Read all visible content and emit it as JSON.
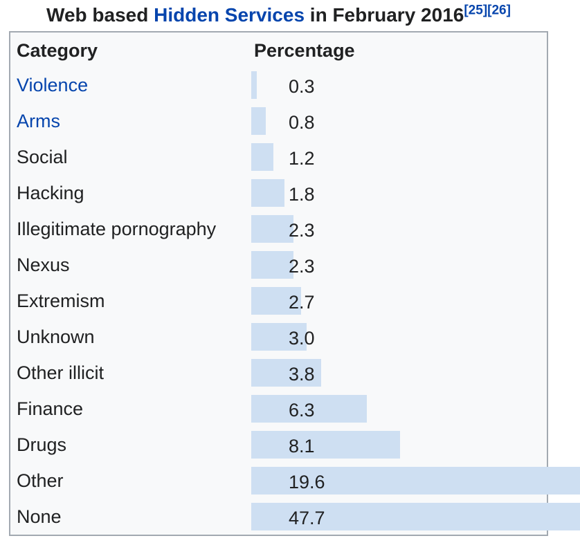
{
  "title": {
    "prefix": "Web based ",
    "link_text": "Hidden Services",
    "suffix": " in February 2016",
    "references": [
      "[25]",
      "[26]"
    ]
  },
  "table": {
    "headers": {
      "category": "Category",
      "percentage": "Percentage"
    },
    "rows": [
      {
        "category": "Violence",
        "is_link": true,
        "value": 0.3,
        "label": "0.3"
      },
      {
        "category": "Arms",
        "is_link": true,
        "value": 0.8,
        "label": "0.8"
      },
      {
        "category": "Social",
        "is_link": false,
        "value": 1.2,
        "label": "1.2"
      },
      {
        "category": "Hacking",
        "is_link": false,
        "value": 1.8,
        "label": "1.8"
      },
      {
        "category": "Illegitimate pornography",
        "is_link": false,
        "value": 2.3,
        "label": "2.3"
      },
      {
        "category": "Nexus",
        "is_link": false,
        "value": 2.3,
        "label": "2.3"
      },
      {
        "category": "Extremism",
        "is_link": false,
        "value": 2.7,
        "label": "2.7"
      },
      {
        "category": "Unknown",
        "is_link": false,
        "value": 3.0,
        "label": "3.0"
      },
      {
        "category": "Other illicit",
        "is_link": false,
        "value": 3.8,
        "label": "3.8"
      },
      {
        "category": "Finance",
        "is_link": false,
        "value": 6.3,
        "label": "6.3"
      },
      {
        "category": "Drugs",
        "is_link": false,
        "value": 8.1,
        "label": "8.1"
      },
      {
        "category": "Other",
        "is_link": false,
        "value": 19.6,
        "label": "19.6"
      },
      {
        "category": "None",
        "is_link": false,
        "value": 47.7,
        "label": "47.7"
      }
    ]
  },
  "colors": {
    "bar": "#cedff2",
    "link": "#0645ad",
    "table_border": "#a2a9b1",
    "table_background": "#f8f9fa",
    "text": "#202122"
  },
  "chart_data": {
    "type": "bar",
    "orientation": "horizontal",
    "title": "Web based Hidden Services in February 2016",
    "references": [
      "[25]",
      "[26]"
    ],
    "xlabel": "Percentage",
    "ylabel": "Category",
    "categories": [
      "Violence",
      "Arms",
      "Social",
      "Hacking",
      "Illegitimate pornography",
      "Nexus",
      "Extremism",
      "Unknown",
      "Other illicit",
      "Finance",
      "Drugs",
      "Other",
      "None"
    ],
    "values": [
      0.3,
      0.8,
      1.2,
      1.8,
      2.3,
      2.3,
      2.7,
      3.0,
      3.8,
      6.3,
      8.1,
      19.6,
      47.7
    ],
    "grid": false,
    "legend": false
  }
}
